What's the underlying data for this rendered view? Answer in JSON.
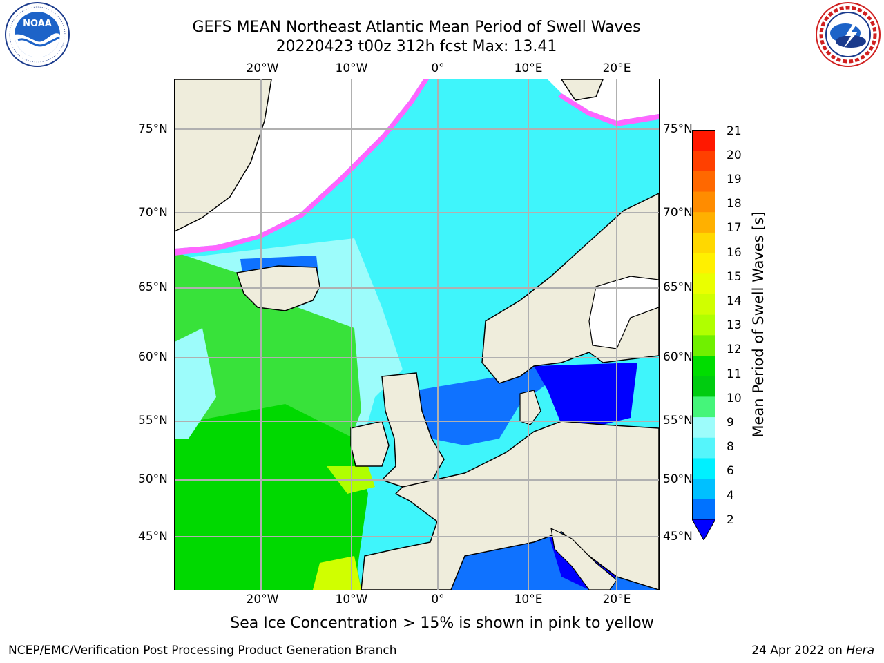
{
  "header": {
    "title_line1": "GEFS MEAN Northeast Atlantic Mean Period of Swell Waves",
    "title_line2": "20220423 t00z 312h fcst   Max: 13.41"
  },
  "logos": {
    "left": {
      "name": "NOAA",
      "ring_text": "NATIONAL OCEANIC AND ATMOSPHERIC ADMINISTRATION · U.S. DEPARTMENT OF COMMERCE"
    },
    "right": {
      "name": "NATIONAL WEATHER SERVICE"
    }
  },
  "map": {
    "lon_labels": [
      "20°W",
      "10°W",
      "0°",
      "10°E",
      "20°E"
    ],
    "lat_labels": [
      "75°N",
      "70°N",
      "65°N",
      "60°N",
      "55°N",
      "50°N",
      "45°N"
    ],
    "colors": {
      "ocean_light": "#9dfcfb",
      "ocean_cyan": "#3ff5fb",
      "ocean_blue": "#0f72ff",
      "ocean_deep": "#0000ff",
      "swell_green": "#38e23a",
      "swell_lime": "#00d900",
      "land": "#efeddc",
      "ice_pink": "#ff66ff",
      "ice_yellow": "#ffd700",
      "grid": "#b0b0b0"
    }
  },
  "colorbar": {
    "title": "Mean Period of Swell Waves [s]",
    "ticks": [
      "21",
      "20",
      "19",
      "18",
      "17",
      "16",
      "15",
      "14",
      "13",
      "12",
      "11",
      "10",
      "9",
      "8",
      "6",
      "4",
      "2"
    ],
    "colors": [
      "#ff1800",
      "#ff4000",
      "#ff6800",
      "#ff8c00",
      "#ffb000",
      "#ffd800",
      "#fff000",
      "#eaff00",
      "#d0ff00",
      "#b0ff00",
      "#70f000",
      "#00dd00",
      "#00cc10",
      "#45f57a",
      "#9dfcfb",
      "#55f5fb",
      "#00f0ff",
      "#00c0ff",
      "#0072ff"
    ]
  },
  "caption": "Sea Ice Concentration > 15% is shown in pink to yellow",
  "footer": {
    "left": "NCEP/EMC/Verification Post Processing Product Generation Branch",
    "right_prefix": "24 Apr 2022 on ",
    "right_host": "Hera"
  }
}
